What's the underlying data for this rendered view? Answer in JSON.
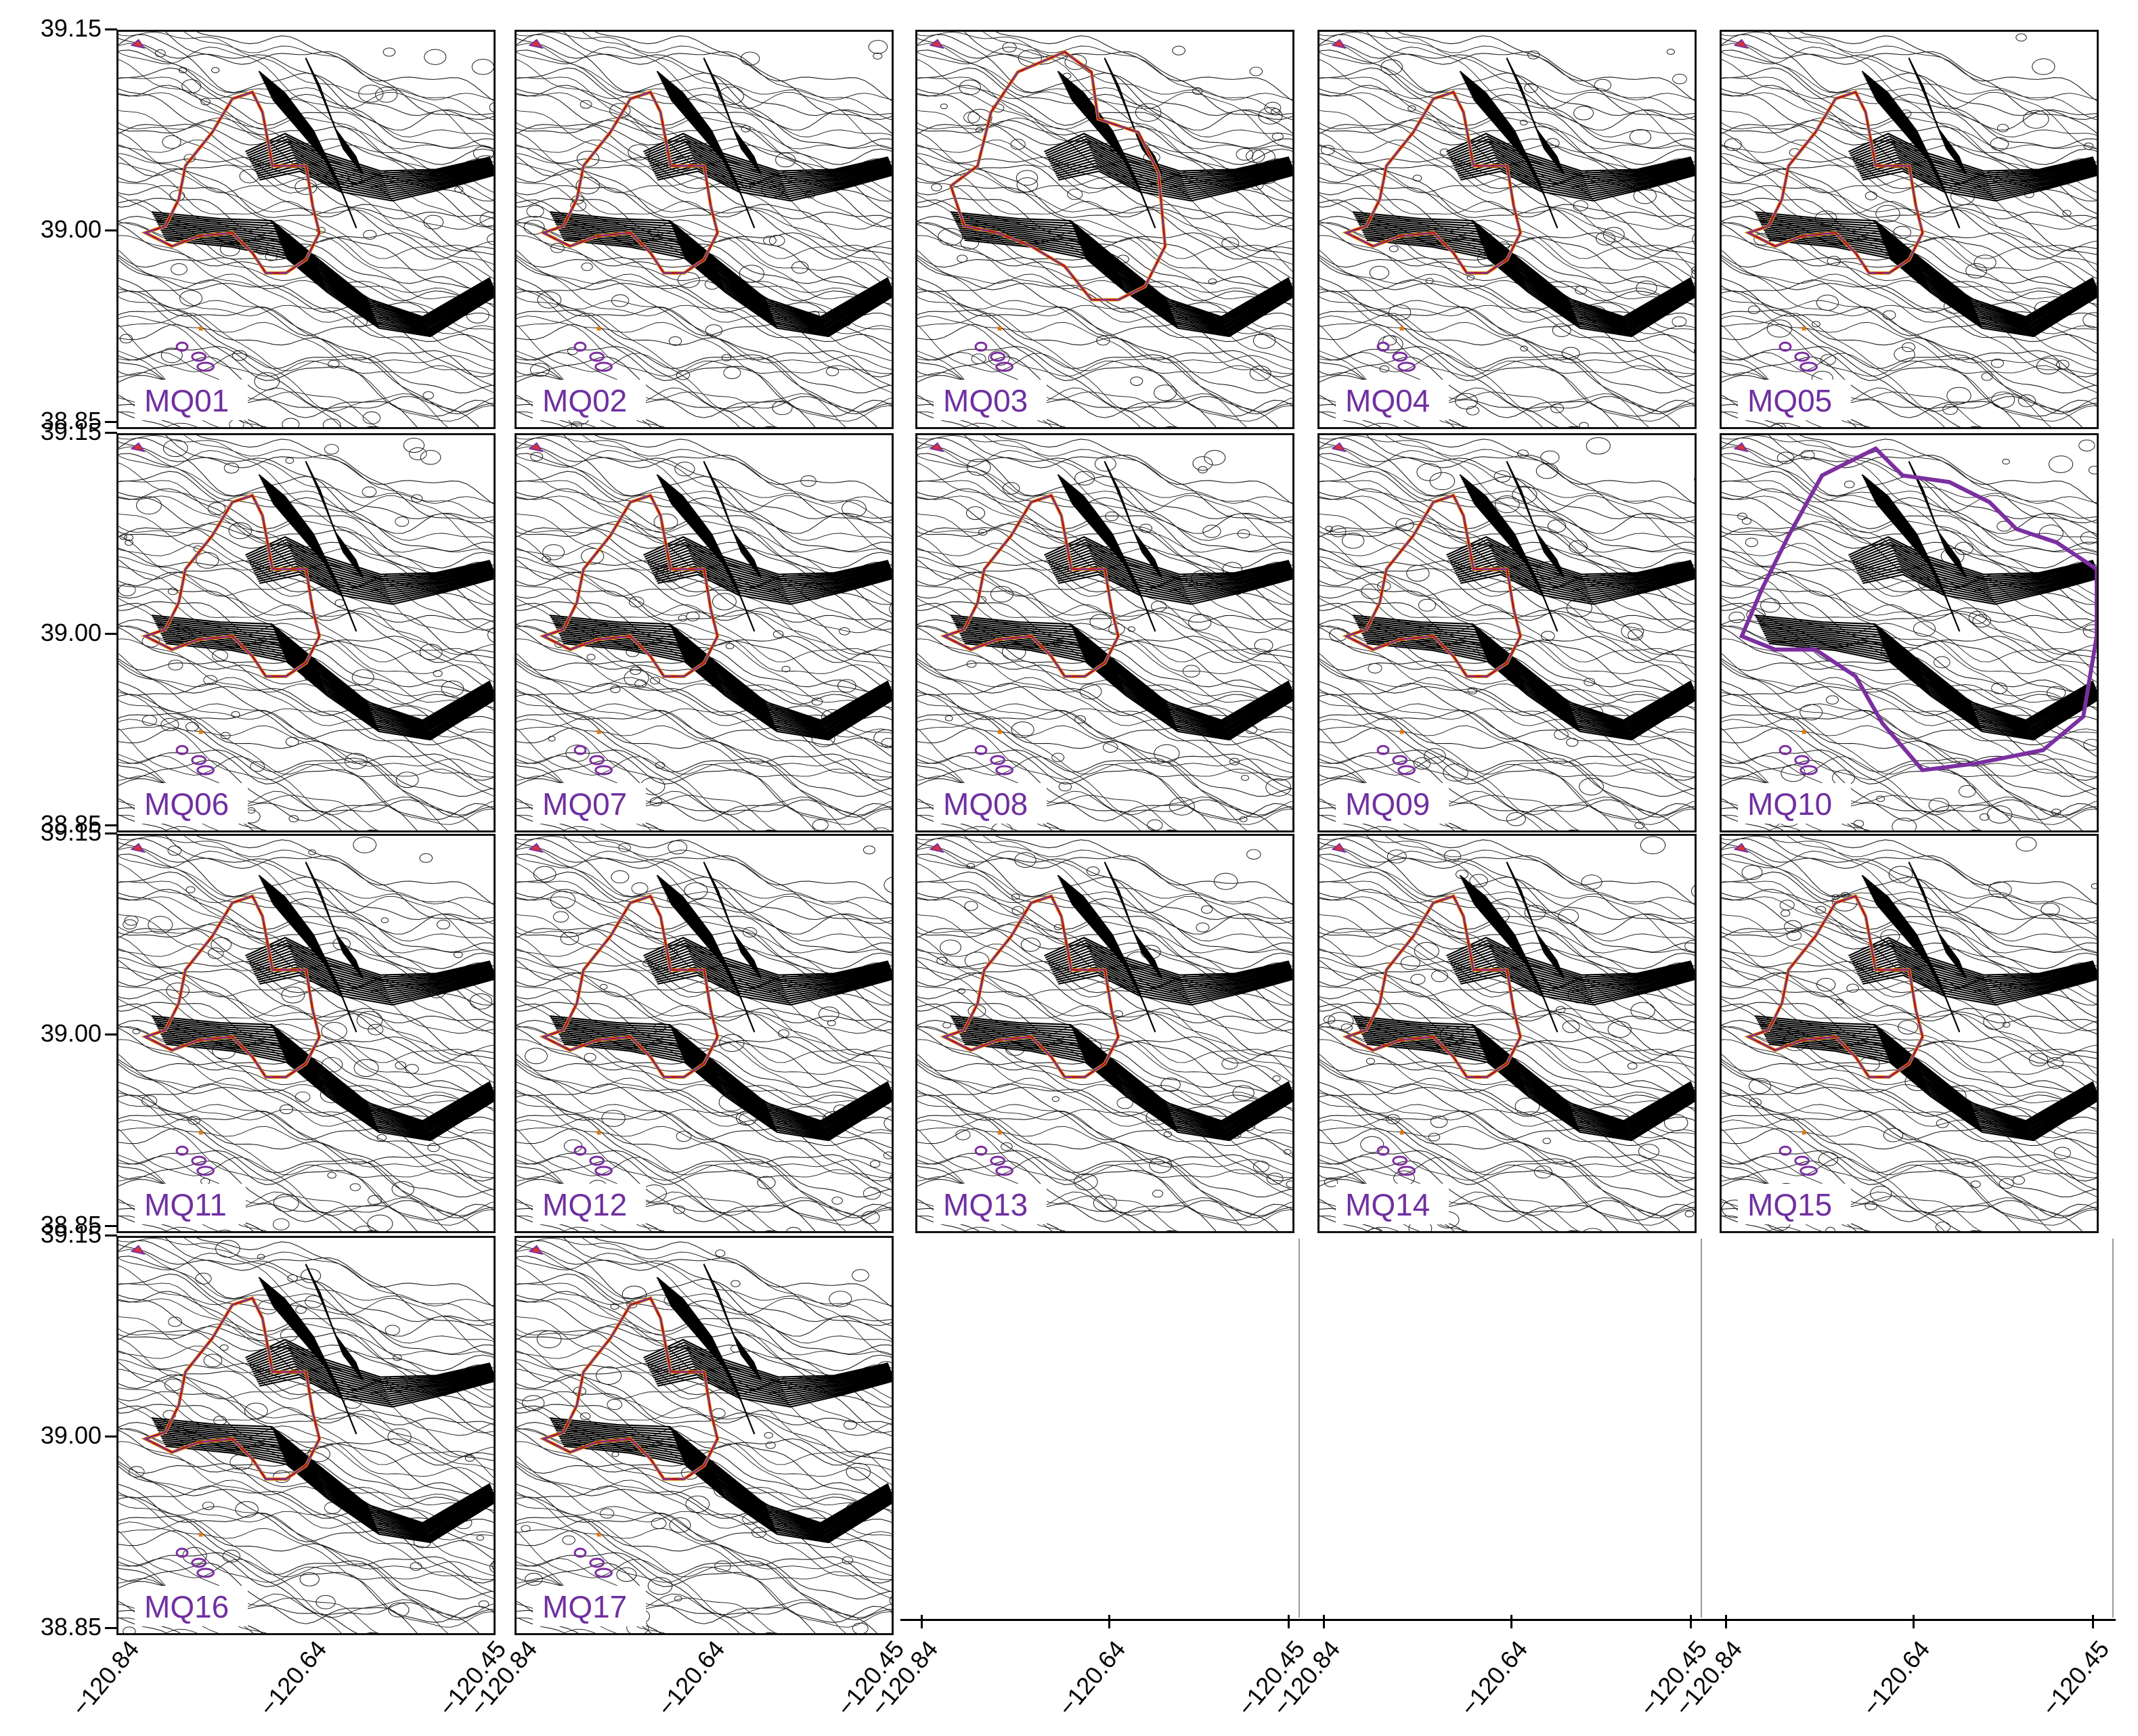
{
  "y_axis": {
    "ticks": [
      "39.15",
      "39.00",
      "38.85"
    ]
  },
  "x_axis": {
    "ticks": [
      "−120.84",
      "−120.64",
      "−120.45"
    ]
  },
  "panels": [
    {
      "label": "MQ01"
    },
    {
      "label": "MQ02"
    },
    {
      "label": "MQ03"
    },
    {
      "label": "MQ04"
    },
    {
      "label": "MQ05"
    },
    {
      "label": "MQ06"
    },
    {
      "label": "MQ07"
    },
    {
      "label": "MQ08"
    },
    {
      "label": "MQ09"
    },
    {
      "label": "MQ10"
    },
    {
      "label": "MQ11"
    },
    {
      "label": "MQ12"
    },
    {
      "label": "MQ13"
    },
    {
      "label": "MQ14"
    },
    {
      "label": "MQ15"
    },
    {
      "label": "MQ16"
    },
    {
      "label": "MQ17"
    }
  ],
  "colors": {
    "contour": "#1a1a1a",
    "perimeter_primary": "#b5122b",
    "perimeter_secondary": "#7b2fa0",
    "perimeter_tertiary": "#d8a21a",
    "label_text": "#7030a0"
  }
}
